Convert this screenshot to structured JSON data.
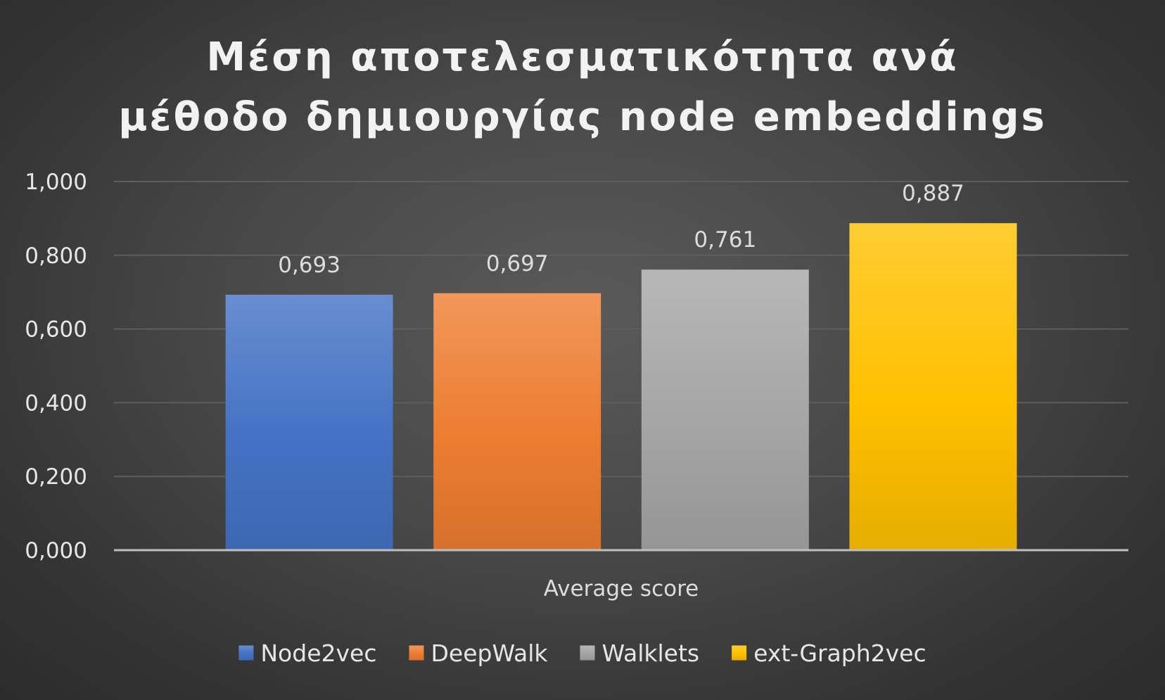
{
  "chart_data": {
    "type": "bar",
    "title_lines": [
      "Μέση αποτελεσματικότητα ανά",
      "μέθοδο δημιουργίας node embeddings"
    ],
    "categories": [
      "Average score"
    ],
    "series": [
      {
        "name": "Node2vec",
        "values": [
          0.693
        ],
        "label": "0,693",
        "color": "#4472c4"
      },
      {
        "name": "DeepWalk",
        "values": [
          0.697
        ],
        "label": "0,697",
        "color": "#ed7d31"
      },
      {
        "name": "Walklets",
        "values": [
          0.761
        ],
        "label": "0,761",
        "color": "#a5a5a5"
      },
      {
        "name": "ext-Graph2vec",
        "values": [
          0.887
        ],
        "label": "0,887",
        "color": "#ffc000"
      }
    ],
    "ylim": [
      0,
      1
    ],
    "yticks": [
      {
        "value": 0,
        "label": "0,000"
      },
      {
        "value": 0.2,
        "label": "0,200"
      },
      {
        "value": 0.4,
        "label": "0,400"
      },
      {
        "value": 0.6,
        "label": "0,600"
      },
      {
        "value": 0.8,
        "label": "0,800"
      },
      {
        "value": 1,
        "label": "1,000"
      }
    ],
    "xlabel": "Average score",
    "grid": true,
    "legend_position": "bottom"
  }
}
